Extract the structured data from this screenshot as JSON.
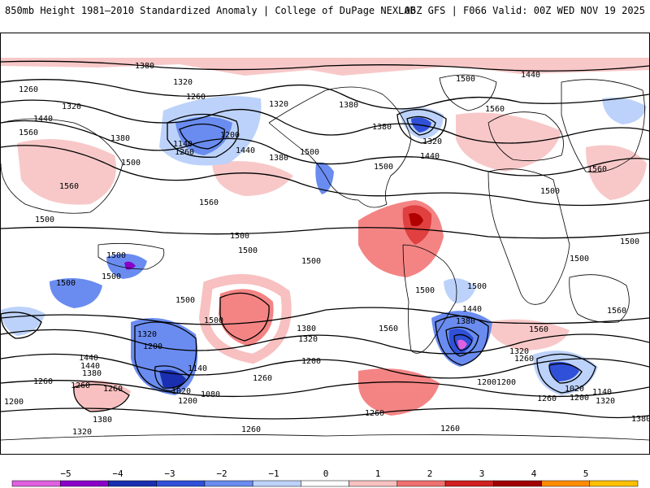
{
  "header": {
    "title_left": "850mb Height 1981–2010 Standardized Anomaly | College of DuPage NEXLAB",
    "title_right": "06Z GFS | F066 Valid: 00Z WED NOV 19 2025"
  },
  "map": {
    "variable": "850mb geopotential height (contours) with standardized anomaly (shading)",
    "contour_labels": [
      "1380",
      "1320",
      "1260",
      "1320",
      "1440",
      "1560",
      "1260",
      "1200",
      "1140",
      "1260",
      "1380",
      "1500",
      "1560",
      "1320",
      "1440",
      "1380",
      "1500",
      "1500",
      "1500",
      "1560",
      "1380",
      "1320",
      "1440",
      "1380",
      "1500",
      "1560",
      "1440",
      "1560",
      "1500",
      "1500",
      "1500",
      "1500",
      "1500",
      "1500",
      "1500",
      "1500",
      "1500",
      "1560",
      "1380",
      "1320",
      "1440",
      "1200",
      "1260",
      "1380",
      "1440",
      "1320",
      "1260",
      "1200",
      "1140",
      "1020",
      "1080",
      "1200",
      "1380",
      "1440",
      "1500",
      "1200",
      "1320",
      "1260",
      "1560",
      "1200",
      "1260",
      "1020",
      "1140",
      "1200",
      "1320",
      "1380",
      "1260",
      "1260",
      "1200",
      "1260",
      "1320",
      "1380",
      "1260",
      "1260",
      "1500",
      "1560",
      "1500",
      "1500"
    ]
  },
  "colorbar": {
    "ticks": [
      "−5",
      "−4",
      "−3",
      "−2",
      "−1",
      "0",
      "1",
      "2",
      "3",
      "4",
      "5"
    ],
    "colors": [
      "#e060e0",
      "#8a00c8",
      "#1a2fb0",
      "#3050d8",
      "#6a8cf0",
      "#bcd2fa",
      "#ffffff",
      "#f8c0c0",
      "#f07070",
      "#d02020",
      "#a00000",
      "#ff8c00",
      "#ffc000"
    ]
  }
}
